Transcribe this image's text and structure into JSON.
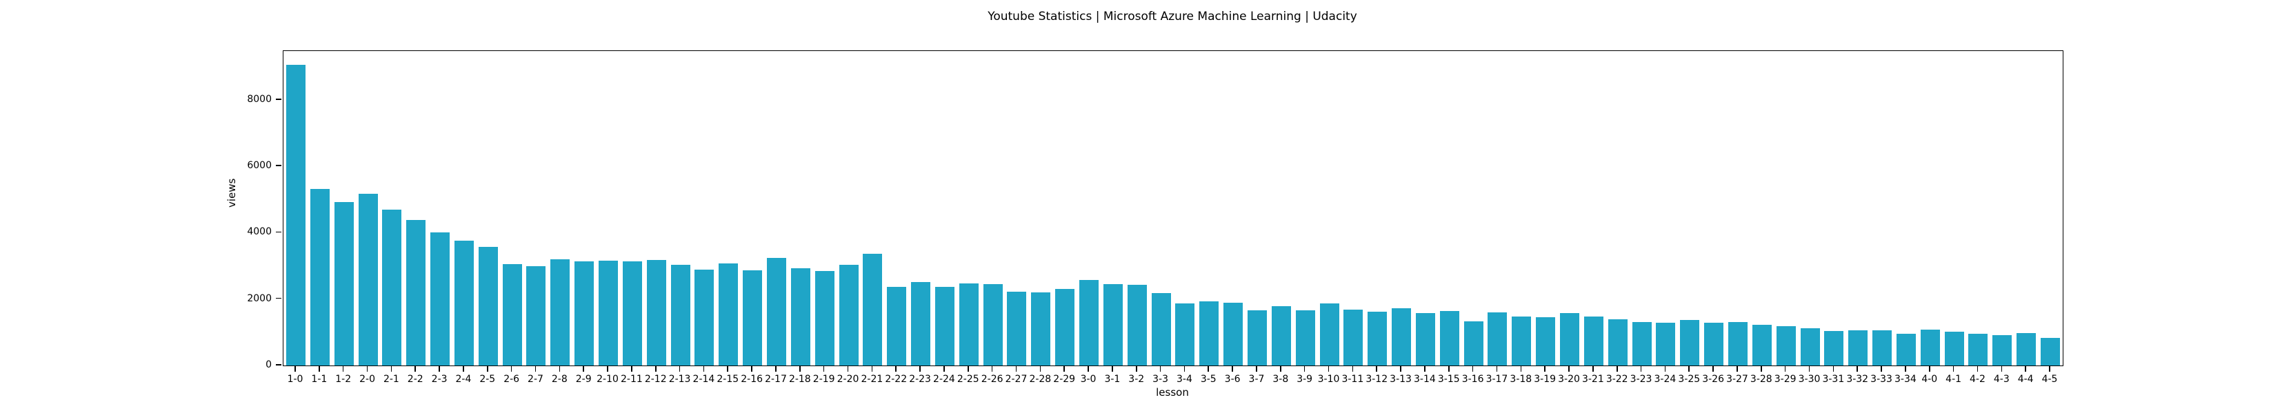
{
  "figure": {
    "background_color": "#ffffff",
    "text_color": "#000000"
  },
  "chart_data": {
    "type": "bar",
    "title": "Youtube Statistics | Microsoft Azure Machine Learning | Udacity",
    "xlabel": "lesson",
    "ylabel": "views",
    "bar_color": "#1fa5c7",
    "grid": false,
    "legend": false,
    "ylim": [
      0,
      9470
    ],
    "yticks": [
      0,
      2000,
      4000,
      6000,
      8000
    ],
    "categories": [
      "1-0",
      "1-1",
      "1-2",
      "2-0",
      "2-1",
      "2-2",
      "2-3",
      "2-4",
      "2-5",
      "2-6",
      "2-7",
      "2-8",
      "2-9",
      "2-10",
      "2-11",
      "2-12",
      "2-13",
      "2-14",
      "2-15",
      "2-16",
      "2-17",
      "2-18",
      "2-19",
      "2-20",
      "2-21",
      "2-22",
      "2-23",
      "2-24",
      "2-25",
      "2-26",
      "2-27",
      "2-28",
      "2-29",
      "3-0",
      "3-1",
      "3-2",
      "3-3",
      "3-4",
      "3-5",
      "3-6",
      "3-7",
      "3-8",
      "3-9",
      "3-10",
      "3-11",
      "3-12",
      "3-13",
      "3-14",
      "3-15",
      "3-16",
      "3-17",
      "3-18",
      "3-19",
      "3-20",
      "3-21",
      "3-22",
      "3-23",
      "3-24",
      "3-25",
      "3-26",
      "3-27",
      "3-28",
      "3-29",
      "3-30",
      "3-31",
      "3-32",
      "3-33",
      "3-34",
      "4-0",
      "4-1",
      "4-2",
      "4-3",
      "4-4",
      "4-5"
    ],
    "values": [
      9060,
      5320,
      4920,
      5170,
      4690,
      4380,
      4010,
      3750,
      3580,
      3060,
      2990,
      3200,
      3130,
      3150,
      3130,
      3180,
      3040,
      2890,
      3070,
      2860,
      3240,
      2930,
      2840,
      3030,
      3360,
      2360,
      2510,
      2360,
      2480,
      2450,
      2230,
      2210,
      2310,
      2580,
      2450,
      2430,
      2190,
      1870,
      1940,
      1900,
      1660,
      1780,
      1660,
      1870,
      1680,
      1630,
      1720,
      1580,
      1650,
      1330,
      1600,
      1480,
      1460,
      1570,
      1480,
      1400,
      1310,
      1280,
      1380,
      1290,
      1310,
      1230,
      1180,
      1120,
      1040,
      1060,
      1060,
      950,
      1070,
      1020,
      960,
      920,
      970,
      830
    ]
  }
}
